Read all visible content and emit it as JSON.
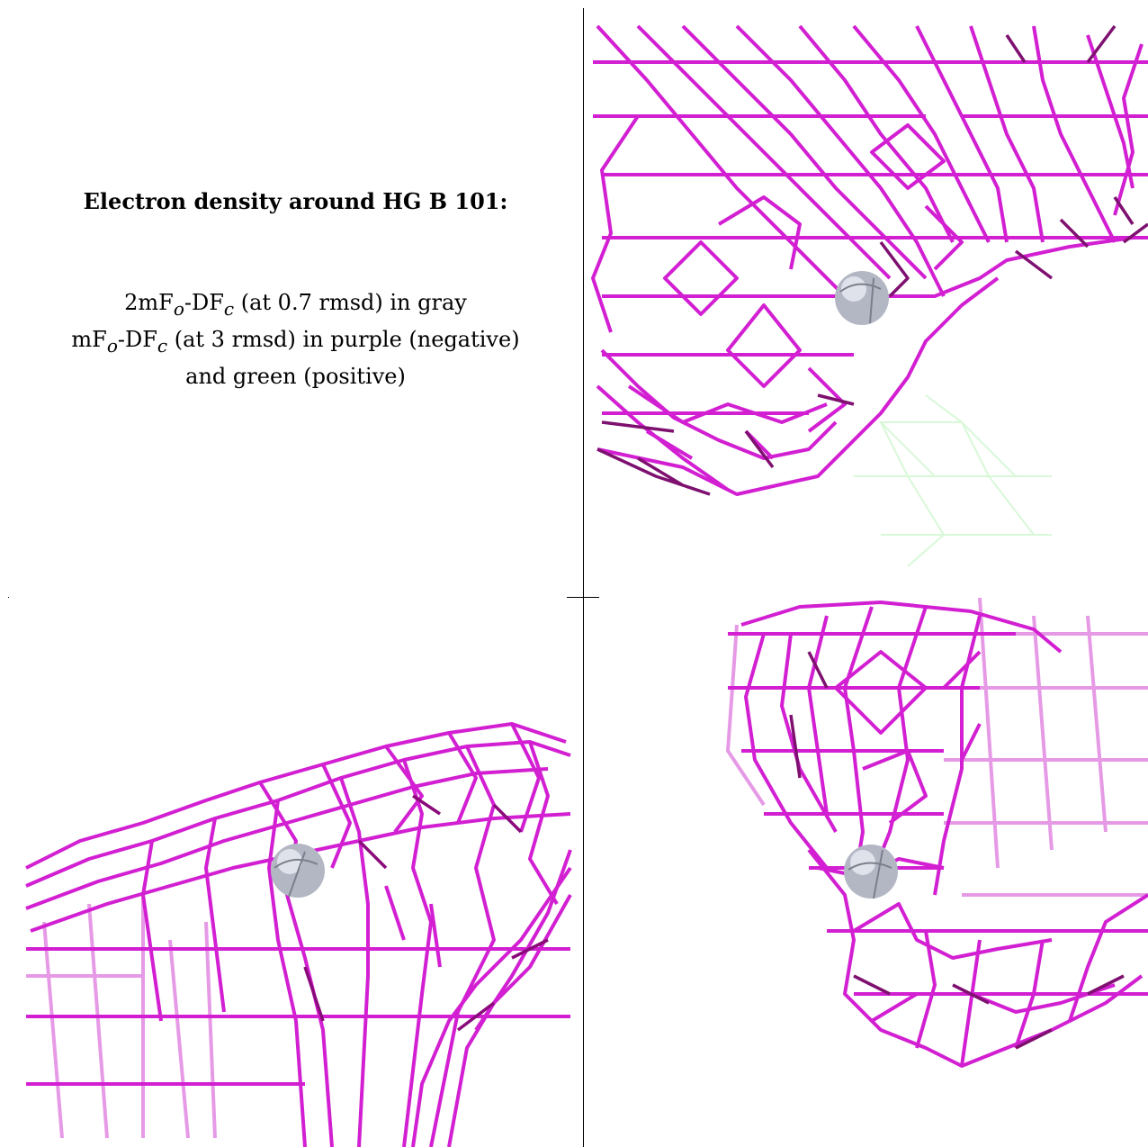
{
  "caption": {
    "title": "Electron density around HG B 101:",
    "line1_rest": " (at 0.7 rmsd) in gray",
    "line2_rest": " (at 3 rmsd) in purple (negative)",
    "line3": "and green (positive)"
  },
  "colors": {
    "mesh_negative": "#cc00cc",
    "mesh_negative_dark": "#8a0a7a",
    "mesh_positive": "#b8f0b8",
    "atom": "#b8bcc8",
    "frame": "#000000"
  },
  "panels": [
    {
      "name": "panel-top-right",
      "atom_icon": "mercury-atom-sphere-icon"
    },
    {
      "name": "panel-bottom-left",
      "atom_icon": "mercury-atom-sphere-icon"
    },
    {
      "name": "panel-bottom-right",
      "atom_icon": "mercury-atom-sphere-icon"
    }
  ]
}
